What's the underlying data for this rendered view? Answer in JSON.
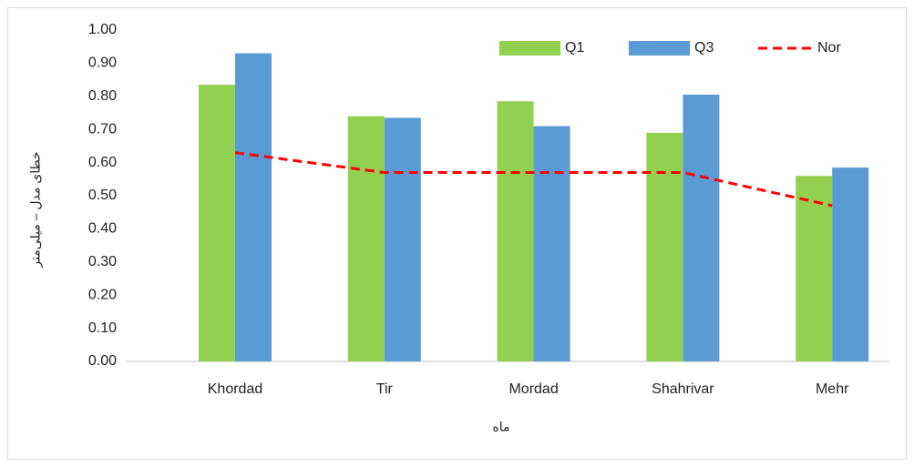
{
  "chart_data": {
    "type": "bar",
    "y_label": "خطای مدل – میلی‌متر",
    "x_label": "ماه",
    "categories": [
      "Khordad",
      "Tir",
      "Mordad",
      "Shahrivar",
      "Mehr"
    ],
    "series": [
      {
        "name": "Q1",
        "color": "#92d050",
        "values": [
          0.835,
          0.74,
          0.785,
          0.69,
          0.56
        ]
      },
      {
        "name": "Q3",
        "color": "#5b9bd5",
        "values": [
          0.93,
          0.735,
          0.71,
          0.805,
          0.585
        ]
      },
      {
        "name": "Nor",
        "color": "#ff0000",
        "type": "line",
        "dashed": true,
        "values": [
          0.63,
          0.57,
          0.57,
          0.57,
          0.47
        ]
      }
    ],
    "ylim": [
      0,
      1
    ],
    "yticks": [
      {
        "value": 0,
        "label": "0.00"
      },
      {
        "value": 0.1,
        "label": "0.10"
      },
      {
        "value": 0.2,
        "label": "0.20"
      },
      {
        "value": 0.3,
        "label": "0.30"
      },
      {
        "value": 0.4,
        "label": "0.40"
      },
      {
        "value": 0.5,
        "label": "0.50"
      },
      {
        "value": 0.6,
        "label": "0.60"
      },
      {
        "value": 0.7,
        "label": "0.70"
      },
      {
        "value": 0.8,
        "label": "0.80"
      },
      {
        "value": 0.9,
        "label": "0.90"
      },
      {
        "value": 1,
        "label": "1.00"
      }
    ],
    "grid": false,
    "legend": "top-right"
  }
}
